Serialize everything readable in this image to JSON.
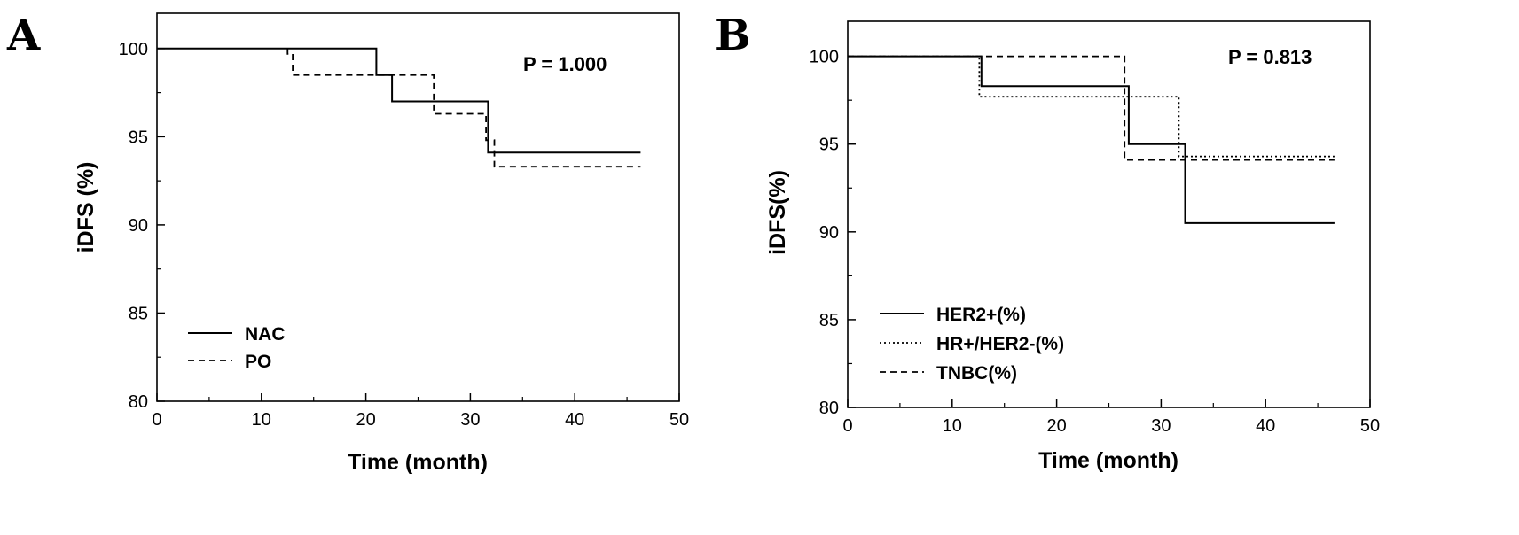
{
  "chart_data": [
    {
      "type": "line",
      "panel_label": "A",
      "annotation": "P = 1.000",
      "xlabel": "Time (month)",
      "ylabel": "iDFS (%)",
      "xlim": [
        0,
        50
      ],
      "ylim": [
        80,
        102
      ],
      "xticks": [
        0,
        10,
        20,
        30,
        40,
        50
      ],
      "yticks": [
        80,
        85,
        90,
        95,
        100
      ],
      "grid": false,
      "legend_position": "bottom-left",
      "series": [
        {
          "name": "NAC",
          "style": "solid",
          "color": "#000000",
          "x": [
            0,
            21,
            21,
            22.5,
            22.5,
            31.7,
            31.7,
            46.3
          ],
          "y": [
            100,
            100,
            98.5,
            98.5,
            97.0,
            97.0,
            94.1,
            94.1
          ]
        },
        {
          "name": "PO",
          "style": "dashed",
          "color": "#000000",
          "x": [
            12.5,
            12.5,
            13.0,
            13.0,
            26.5,
            26.5,
            31.5,
            31.5,
            32.3,
            32.3,
            46.3
          ],
          "y": [
            100,
            99.7,
            99.7,
            98.5,
            98.5,
            96.3,
            96.3,
            94.8,
            94.8,
            93.3,
            93.3
          ]
        }
      ]
    },
    {
      "type": "line",
      "panel_label": "B",
      "annotation": "P = 0.813",
      "xlabel": "Time (month)",
      "ylabel": "iDFS(%)",
      "xlim": [
        0,
        50
      ],
      "ylim": [
        80,
        102
      ],
      "xticks": [
        0,
        10,
        20,
        30,
        40,
        50
      ],
      "yticks": [
        80,
        85,
        90,
        95,
        100
      ],
      "grid": false,
      "legend_position": "bottom-left",
      "series": [
        {
          "name": "HER2+(%)",
          "style": "solid",
          "color": "#000000",
          "x": [
            0,
            12.8,
            12.8,
            26.9,
            26.9,
            32.3,
            32.3,
            46.6
          ],
          "y": [
            100,
            100,
            98.3,
            98.3,
            95.0,
            95.0,
            90.5,
            90.5
          ]
        },
        {
          "name": "HR+/HER2-(%)",
          "style": "dotted",
          "color": "#000000",
          "x": [
            0,
            12.6,
            12.6,
            31.7,
            31.7,
            46.6
          ],
          "y": [
            100,
            100,
            97.7,
            97.7,
            94.3,
            94.3
          ]
        },
        {
          "name": "TNBC(%)",
          "style": "dashed",
          "color": "#000000",
          "x": [
            0,
            26.5,
            26.5,
            46.6
          ],
          "y": [
            100,
            100,
            94.1,
            94.1
          ]
        }
      ]
    }
  ]
}
